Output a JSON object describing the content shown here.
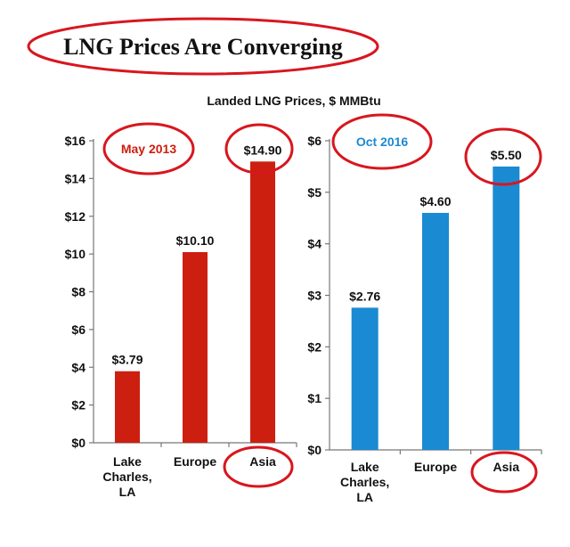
{
  "title": "LNG Prices Are Converging",
  "colors": {
    "highlight": "#d8161e",
    "may_bar": "#cc1f10",
    "oct_bar": "#1a8ad2",
    "oct_label": "#1a8ad2",
    "axis": "#777777"
  },
  "chart_data": [
    {
      "type": "bar",
      "title": "Landed LNG Prices, $ MMBtu",
      "period_label": "May 2013",
      "categories": [
        "Lake Charles, LA",
        "Europe",
        "Asia"
      ],
      "category_lines": [
        [
          "Lake",
          "Charles,",
          "LA"
        ],
        [
          "Europe"
        ],
        [
          "Asia"
        ]
      ],
      "values": [
        3.79,
        10.1,
        14.9
      ],
      "value_labels": [
        "$3.79",
        "$10.10",
        "$14.90"
      ],
      "ylim": [
        0,
        16
      ],
      "yticks": [
        0,
        2,
        4,
        6,
        8,
        10,
        12,
        14,
        16
      ],
      "ytick_labels": [
        "$0",
        "$2",
        "$4",
        "$6",
        "$8",
        "$10",
        "$12",
        "$14",
        "$16"
      ],
      "xlabel": "",
      "ylabel": "",
      "grid": false
    },
    {
      "type": "bar",
      "title": "Landed LNG Prices, $ MMBtu",
      "period_label": "Oct 2016",
      "categories": [
        "Lake Charles, LA",
        "Europe",
        "Asia"
      ],
      "category_lines": [
        [
          "Lake",
          "Charles,",
          "LA"
        ],
        [
          "Europe"
        ],
        [
          "Asia"
        ]
      ],
      "values": [
        2.76,
        4.6,
        5.5
      ],
      "value_labels": [
        "$2.76",
        "$4.60",
        "$5.50"
      ],
      "ylim": [
        0,
        6
      ],
      "yticks": [
        0,
        1,
        2,
        3,
        4,
        5,
        6
      ],
      "ytick_labels": [
        "$0",
        "$1",
        "$2",
        "$3",
        "$4",
        "$5",
        "$6"
      ],
      "xlabel": "",
      "ylabel": "",
      "grid": false
    }
  ]
}
